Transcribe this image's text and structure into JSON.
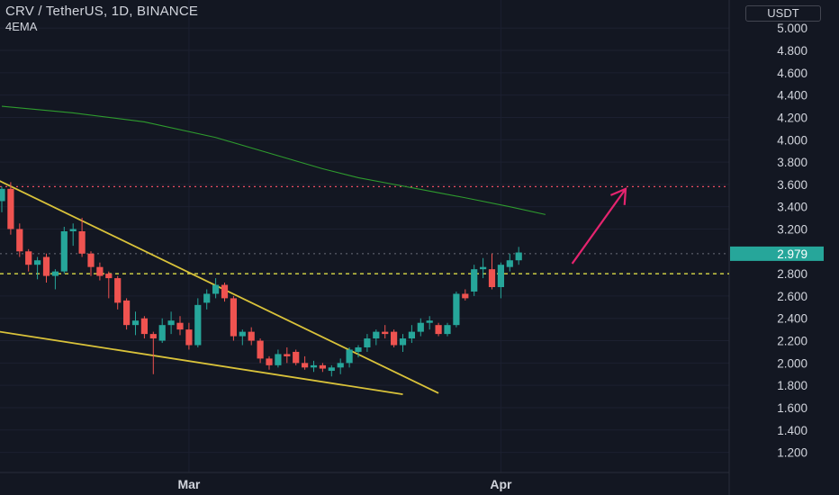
{
  "chart_data": {
    "type": "candlestick",
    "symbol_line": "CRV / TetherUS, 1D, BINANCE",
    "indicator_label": "4EMA",
    "price_unit": "USDT",
    "current_price": "2.979",
    "y_ticks": [
      "5.000",
      "4.800",
      "4.600",
      "4.400",
      "4.200",
      "4.000",
      "3.800",
      "3.600",
      "3.400",
      "3.200",
      "2.800",
      "2.600",
      "2.400",
      "2.200",
      "2.000",
      "1.800",
      "1.600",
      "1.400",
      "1.200"
    ],
    "ylim": [
      1.1,
      5.05
    ],
    "x_labels": [
      "Mar",
      "Apr"
    ],
    "ohlc": [
      [
        3.45,
        3.58,
        3.35,
        3.56
      ],
      [
        3.56,
        3.62,
        3.15,
        3.2
      ],
      [
        3.2,
        3.25,
        2.95,
        3.0
      ],
      [
        3.0,
        3.02,
        2.82,
        2.88
      ],
      [
        2.88,
        2.95,
        2.75,
        2.92
      ],
      [
        2.95,
        2.98,
        2.72,
        2.78
      ],
      [
        2.78,
        2.84,
        2.66,
        2.82
      ],
      [
        2.82,
        3.22,
        2.8,
        3.18
      ],
      [
        3.18,
        3.25,
        3.05,
        3.2
      ],
      [
        3.18,
        3.3,
        2.95,
        2.98
      ],
      [
        2.98,
        3.0,
        2.78,
        2.86
      ],
      [
        2.86,
        2.9,
        2.74,
        2.78
      ],
      [
        2.8,
        2.82,
        2.58,
        2.76
      ],
      [
        2.76,
        2.78,
        2.48,
        2.54
      ],
      [
        2.56,
        2.58,
        2.3,
        2.34
      ],
      [
        2.34,
        2.46,
        2.25,
        2.38
      ],
      [
        2.4,
        2.42,
        2.22,
        2.26
      ],
      [
        2.26,
        2.28,
        1.9,
        2.22
      ],
      [
        2.2,
        2.4,
        2.18,
        2.34
      ],
      [
        2.34,
        2.46,
        2.26,
        2.38
      ],
      [
        2.36,
        2.42,
        2.25,
        2.3
      ],
      [
        2.3,
        2.36,
        2.12,
        2.16
      ],
      [
        2.16,
        2.58,
        2.14,
        2.52
      ],
      [
        2.54,
        2.66,
        2.48,
        2.62
      ],
      [
        2.62,
        2.76,
        2.58,
        2.7
      ],
      [
        2.7,
        2.72,
        2.55,
        2.58
      ],
      [
        2.58,
        2.6,
        2.2,
        2.24
      ],
      [
        2.24,
        2.3,
        2.16,
        2.28
      ],
      [
        2.28,
        2.32,
        2.16,
        2.2
      ],
      [
        2.2,
        2.22,
        2.0,
        2.04
      ],
      [
        2.04,
        2.06,
        1.94,
        1.98
      ],
      [
        1.98,
        2.12,
        1.96,
        2.08
      ],
      [
        2.08,
        2.14,
        2.0,
        2.06
      ],
      [
        2.1,
        2.12,
        1.98,
        2.0
      ],
      [
        2.0,
        2.06,
        1.94,
        1.96
      ],
      [
        1.96,
        2.02,
        1.92,
        1.98
      ],
      [
        1.98,
        2.0,
        1.92,
        1.95
      ],
      [
        1.93,
        1.98,
        1.88,
        1.96
      ],
      [
        1.96,
        2.04,
        1.9,
        2.0
      ],
      [
        2.0,
        2.14,
        1.96,
        2.12
      ],
      [
        2.1,
        2.16,
        2.05,
        2.14
      ],
      [
        2.14,
        2.26,
        2.1,
        2.22
      ],
      [
        2.22,
        2.3,
        2.16,
        2.28
      ],
      [
        2.28,
        2.34,
        2.22,
        2.26
      ],
      [
        2.28,
        2.3,
        2.14,
        2.16
      ],
      [
        2.16,
        2.26,
        2.1,
        2.22
      ],
      [
        2.22,
        2.34,
        2.18,
        2.28
      ],
      [
        2.28,
        2.4,
        2.24,
        2.36
      ],
      [
        2.36,
        2.42,
        2.3,
        2.38
      ],
      [
        2.34,
        2.36,
        2.24,
        2.26
      ],
      [
        2.26,
        2.36,
        2.24,
        2.34
      ],
      [
        2.34,
        2.64,
        2.32,
        2.62
      ],
      [
        2.62,
        2.66,
        2.56,
        2.58
      ],
      [
        2.64,
        2.88,
        2.6,
        2.84
      ],
      [
        2.84,
        2.94,
        2.76,
        2.86
      ],
      [
        2.84,
        2.98,
        2.66,
        2.68
      ],
      [
        2.68,
        2.9,
        2.58,
        2.88
      ],
      [
        2.86,
        2.98,
        2.82,
        2.92
      ],
      [
        2.92,
        3.04,
        2.88,
        2.99
      ]
    ],
    "ema": [
      [
        0,
        4.3
      ],
      [
        8,
        4.24
      ],
      [
        16,
        4.16
      ],
      [
        24,
        4.02
      ],
      [
        30,
        3.88
      ],
      [
        36,
        3.74
      ],
      [
        40,
        3.66
      ],
      [
        44,
        3.6
      ],
      [
        48,
        3.54
      ],
      [
        52,
        3.48
      ],
      [
        57,
        3.4
      ],
      [
        61,
        3.33
      ]
    ],
    "trendline_upper": [
      [
        -1,
        3.66
      ],
      [
        49,
        1.73
      ]
    ],
    "trendline_lower": [
      [
        -1,
        2.29
      ],
      [
        45,
        1.72
      ]
    ],
    "horizontal_levels": [
      {
        "value": 3.58,
        "style": "dotted",
        "color": "#ea4b61"
      },
      {
        "value": 2.8,
        "style": "dashed",
        "color": "#f0f04a"
      },
      {
        "value": 2.979,
        "style": "dotted",
        "color": "#6a6d78"
      }
    ],
    "arrow": {
      "from": [
        64,
        2.89
      ],
      "to": [
        70,
        3.56
      ],
      "color": "#e5246f"
    },
    "colors": {
      "up": "#26a69a",
      "down": "#ef5350",
      "ema": "#2e9b2e",
      "trendline": "#d9c23a",
      "price_badge": "#26a69a"
    }
  }
}
